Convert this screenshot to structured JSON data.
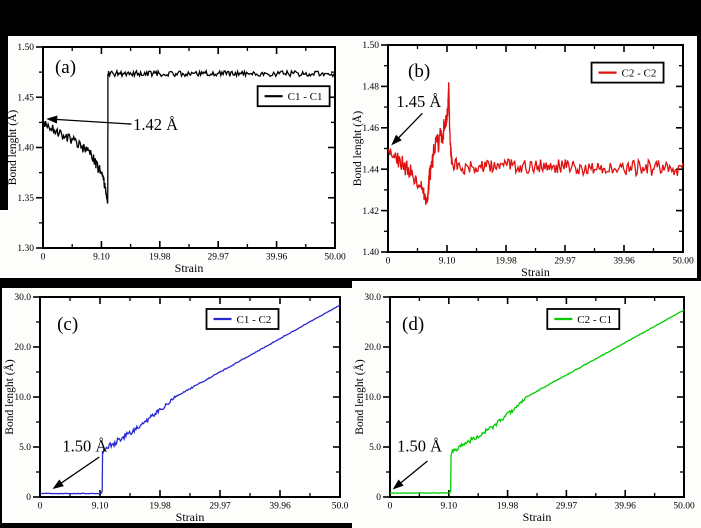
{
  "figure": {
    "background_color": "#000000",
    "panel_color": "#fdfdfb",
    "description_labels": {
      "xlabel": "Strain",
      "ylabel": "Bond lenght (Å)"
    }
  },
  "chart_data": [
    {
      "panel": "a",
      "type": "line",
      "panel_letter": "(a)",
      "letter_pos": [
        0.041,
        0.13
      ],
      "xlabel": "Strain",
      "ylabel": "Bond lenght (Å)",
      "xtick_values": [
        0,
        9.1,
        19.98,
        29.97,
        39.96,
        50.0
      ],
      "xtick_labels": [
        "0",
        "9.10",
        "19.98",
        "29.97",
        "39.96",
        "50.00"
      ],
      "ytick_values": [
        1.3,
        1.35,
        1.4,
        1.45,
        1.5
      ],
      "ytick_labels": [
        "1.30",
        "1.35",
        "1.40",
        "1.45",
        "1.50"
      ],
      "ylim": [
        1.3,
        1.5
      ],
      "legend": {
        "label": "C1 - C1",
        "pos": [
          0.735,
          0.195
        ]
      },
      "series": [
        {
          "name": "C1 - C1",
          "color": "#000000",
          "keyframes": [
            [
              0,
              1.425,
              0.003
            ],
            [
              0.8,
              1.421,
              0.004
            ],
            [
              2.5,
              1.4145,
              0.0045
            ],
            [
              4.5,
              1.407,
              0.005
            ],
            [
              6.5,
              1.398,
              0.0055
            ],
            [
              8.0,
              1.388,
              0.006
            ],
            [
              9.3,
              1.372,
              0.005
            ],
            [
              10.0,
              1.355,
              0.0035
            ],
            [
              10.22,
              1.3455,
              0.001
            ],
            [
              10.28,
              1.345,
              0
            ],
            [
              10.32,
              1.472,
              0
            ],
            [
              10.45,
              1.4735,
              0.0028
            ],
            [
              50,
              1.4735,
              0.0028
            ]
          ]
        }
      ],
      "annotation": {
        "text": "1.42 Å",
        "text_pos": [
          15.0,
          1.4174
        ],
        "arrow_from": [
          14.7,
          1.4233
        ],
        "arrow_to": [
          0.5,
          1.4285
        ]
      }
    },
    {
      "panel": "b",
      "type": "line",
      "panel_letter": "(b)",
      "letter_pos": [
        0.068,
        0.155
      ],
      "xlabel": "Strain",
      "ylabel": "Bond lenght (Å)",
      "xtick_values": [
        0,
        9.1,
        19.98,
        29.97,
        39.96,
        50.0
      ],
      "xtick_labels": [
        "0",
        "9.10",
        "19.98",
        "29.97",
        "39.96",
        "50.00"
      ],
      "ytick_values": [
        1.4,
        1.42,
        1.44,
        1.46,
        1.48,
        1.5
      ],
      "ytick_labels": [
        "1.40",
        "1.42",
        "1.44",
        "1.46",
        "1.48",
        "1.50"
      ],
      "ylim": [
        1.4,
        1.5
      ],
      "legend": {
        "label": "C2 - C2",
        "pos": [
          0.69,
          0.085
        ]
      },
      "series": [
        {
          "name": "C2 - C2",
          "color": "#e01010",
          "keyframes": [
            [
              0,
              1.4495,
              0.0015
            ],
            [
              0.9,
              1.447,
              0.0035
            ],
            [
              2.2,
              1.4425,
              0.004
            ],
            [
              3.6,
              1.438,
              0.004
            ],
            [
              4.8,
              1.4335,
              0.0035
            ],
            [
              5.7,
              1.4265,
              0.003
            ],
            [
              6.05,
              1.4225,
              0.0015
            ],
            [
              6.4,
              1.4375,
              0.005
            ],
            [
              7.2,
              1.449,
              0.0055
            ],
            [
              8.2,
              1.4555,
              0.006
            ],
            [
              8.9,
              1.4615,
              0.005
            ],
            [
              9.25,
              1.4685,
              0.003
            ],
            [
              9.42,
              1.482,
              0
            ],
            [
              9.6,
              1.4575,
              0.0025
            ],
            [
              9.95,
              1.4435,
              0.003
            ],
            [
              10.6,
              1.4415,
              0.0038
            ],
            [
              50,
              1.4405,
              0.0038
            ]
          ]
        }
      ],
      "annotation": {
        "text": "1.45 Å",
        "text_pos": [
          1.3,
          1.47
        ],
        "arrow_from": [
          5.3,
          1.467
        ],
        "arrow_to": [
          0.5,
          1.4515
        ]
      }
    },
    {
      "panel": "c",
      "type": "line",
      "panel_letter": "(c)",
      "letter_pos": [
        0.057,
        0.165
      ],
      "xlabel": "Strain",
      "ylabel": "Bond lenght (Å)",
      "xtick_values": [
        0,
        9.1,
        19.98,
        29.97,
        39.96,
        50.0
      ],
      "xtick_labels": [
        "0",
        "9.10",
        "19.98",
        "29.97",
        "39.96",
        "50.0"
      ],
      "ytick_values": [
        0,
        5.0,
        10.0,
        20.0,
        30.0
      ],
      "ytick_labels": [
        "0",
        "5.0",
        "10.0",
        "20.0",
        "30.0"
      ],
      "ylim": [
        0,
        30
      ],
      "legend": {
        "label": "C1 - C2",
        "pos": [
          0.555,
          0.06
        ]
      },
      "series": [
        {
          "name": "C1 - C2",
          "color": "#2828cf",
          "keyframes": [
            [
              0,
              0.35,
              0.02
            ],
            [
              9.3,
              0.35,
              0.02
            ],
            [
              9.5,
              0.55,
              0
            ],
            [
              9.56,
              4.45,
              0.1
            ],
            [
              9.9,
              4.75,
              0.22
            ],
            [
              10.8,
              5.05,
              0.28
            ],
            [
              12.3,
              5.65,
              0.3
            ],
            [
              13.8,
              6.15,
              0.28
            ],
            [
              15.3,
              6.7,
              0.26
            ],
            [
              16.8,
              7.25,
              0.28
            ],
            [
              18.8,
              8.15,
              0.26
            ],
            [
              20.8,
              9.1,
              0.2
            ],
            [
              22.8,
              10.2,
              0.12
            ],
            [
              50,
              28.4,
              0.05
            ]
          ]
        }
      ],
      "annotation": {
        "text": "1.50 Å",
        "text_pos": [
          3.4,
          4.55
        ],
        "arrow_from": [
          9.0,
          4.0
        ],
        "arrow_to": [
          1.9,
          0.8
        ]
      }
    },
    {
      "panel": "d",
      "type": "line",
      "panel_letter": "(d)",
      "letter_pos": [
        0.041,
        0.165
      ],
      "xlabel": "Strain",
      "ylabel": "Bond lenght (Å)",
      "xtick_values": [
        0,
        9.1,
        19.98,
        29.97,
        39.96,
        50.0
      ],
      "xtick_labels": [
        "0",
        "9.10",
        "19.98",
        "29.97",
        "39.96",
        "50.00"
      ],
      "ytick_values": [
        0,
        5.0,
        10.0,
        20.0,
        30.0
      ],
      "ytick_labels": [
        "0",
        "5.0",
        "10.0",
        "20.0",
        "30.0"
      ],
      "ylim": [
        0,
        30
      ],
      "legend": {
        "label": "C2 - C1",
        "pos": [
          0.535,
          0.06
        ]
      },
      "series": [
        {
          "name": "C2 - C1",
          "color": "#00cc00",
          "keyframes": [
            [
              0,
              0.4,
              0.02
            ],
            [
              9.25,
              0.4,
              0.02
            ],
            [
              9.45,
              0.6,
              0
            ],
            [
              9.52,
              4.3,
              0.12
            ],
            [
              9.9,
              4.65,
              0.3
            ],
            [
              10.8,
              4.95,
              0.3
            ],
            [
              12.3,
              5.45,
              0.28
            ],
            [
              13.8,
              5.9,
              0.26
            ],
            [
              15.3,
              6.35,
              0.24
            ],
            [
              16.8,
              6.85,
              0.24
            ],
            [
              18.8,
              7.7,
              0.2
            ],
            [
              20.8,
              8.65,
              0.16
            ],
            [
              22.8,
              9.75,
              0.1
            ],
            [
              50,
              27.4,
              0.05
            ]
          ]
        }
      ],
      "annotation": {
        "text": "1.50 Å",
        "text_pos": [
          1.1,
          4.55
        ],
        "arrow_from": [
          5.8,
          3.6
        ],
        "arrow_to": [
          0.4,
          0.75
        ]
      }
    }
  ]
}
